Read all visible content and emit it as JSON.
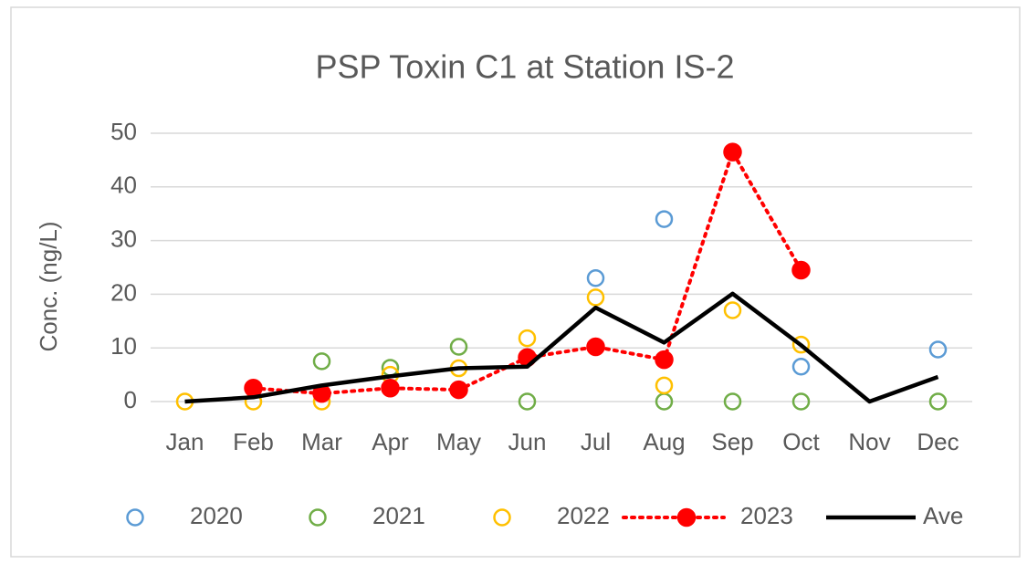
{
  "chart_data": {
    "type": "line",
    "title": "PSP Toxin C1 at Station IS-2",
    "y_label": "Conc.  (ng/L)",
    "categories": [
      "Jan",
      "Feb",
      "Mar",
      "Apr",
      "May",
      "Jun",
      "Jul",
      "Aug",
      "Sep",
      "Oct",
      "Nov",
      "Dec"
    ],
    "ylim": [
      0,
      50
    ],
    "yticks": [
      0,
      10,
      20,
      30,
      40,
      50
    ],
    "grid": true,
    "legend": "bottom",
    "series": [
      {
        "name": "2020",
        "color": "#5b9bd5",
        "style": "open-marker",
        "values": [
          null,
          null,
          null,
          null,
          null,
          null,
          23,
          34,
          null,
          6.5,
          null,
          9.7
        ]
      },
      {
        "name": "2021",
        "color": "#70ad47",
        "style": "open-marker",
        "values": [
          null,
          null,
          7.5,
          6.3,
          10.2,
          0,
          null,
          0,
          0,
          0,
          null,
          0
        ]
      },
      {
        "name": "2022",
        "color": "#ffc000",
        "style": "open-marker",
        "values": [
          0,
          0,
          0,
          5,
          6.2,
          11.8,
          19.4,
          3,
          17,
          10.6,
          null,
          null
        ]
      },
      {
        "name": "2023",
        "color": "#ff0000",
        "style": "dotted-line-filled-marker",
        "values": [
          null,
          2.5,
          1.5,
          2.5,
          2.2,
          8.2,
          10.2,
          7.8,
          46.5,
          24.5,
          null,
          null
        ]
      },
      {
        "name": "Ave",
        "color": "#000000",
        "style": "solid-line",
        "values": [
          0,
          0.8,
          3,
          4.7,
          6.2,
          6.5,
          17.5,
          11,
          20.1,
          10.5,
          0,
          4.6
        ]
      }
    ]
  }
}
